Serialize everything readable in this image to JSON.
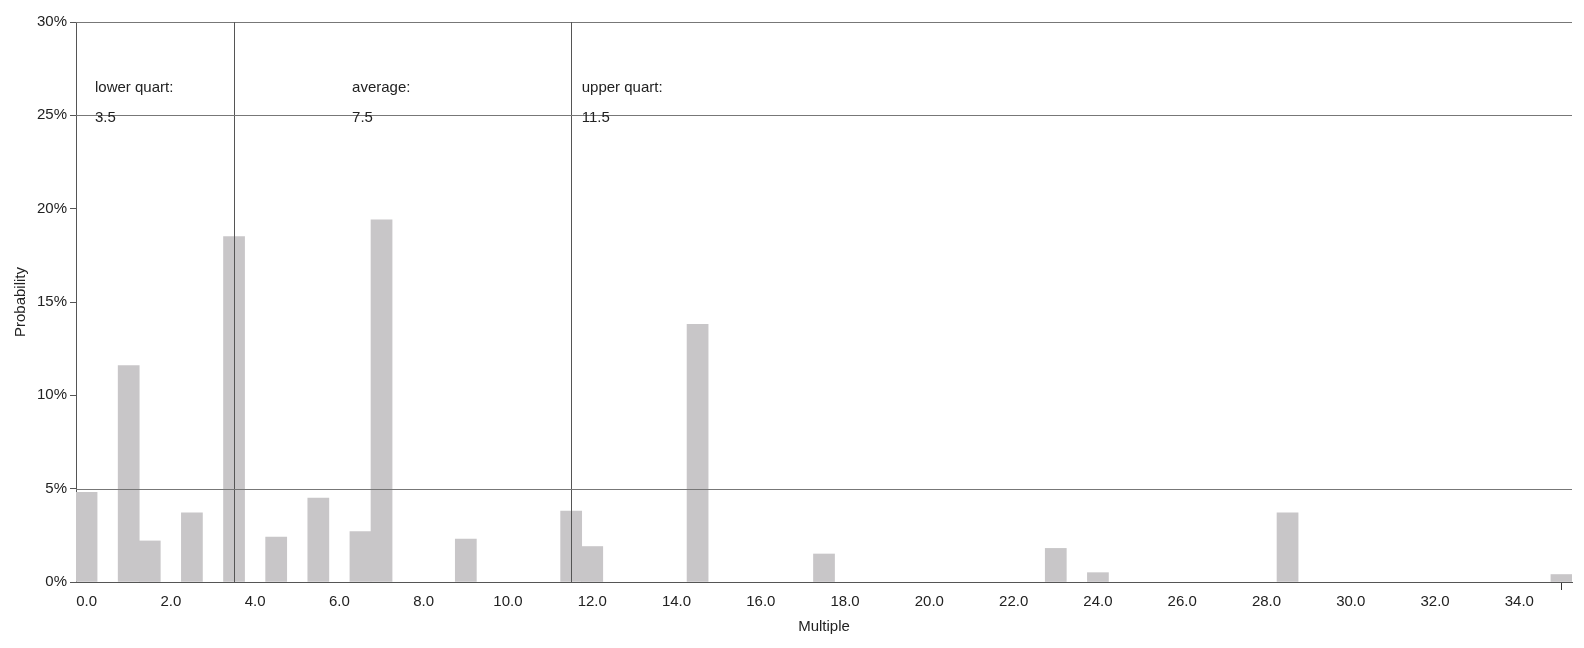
{
  "chart_data": {
    "type": "bar",
    "xlabel": "Multiple",
    "ylabel": "Probability",
    "x": [
      0.0,
      1.0,
      1.5,
      2.5,
      3.5,
      4.5,
      5.5,
      6.5,
      7.0,
      9.0,
      11.5,
      12.0,
      14.5,
      17.5,
      23.0,
      24.0,
      28.5,
      35.0
    ],
    "series": [
      {
        "color": "#c8c6c8",
        "values": [
          4.8,
          11.6,
          2.2,
          3.7,
          18.5,
          2.4,
          4.5,
          2.7,
          19.4,
          2.3,
          3.8,
          1.9,
          13.8,
          1.5,
          1.8,
          0.5,
          3.7,
          0.4
        ]
      }
    ],
    "xlim": [
      -0.25,
      35.25
    ],
    "xticks": [
      {
        "value": 0,
        "label": "0.0"
      },
      {
        "value": 2,
        "label": "2.0"
      },
      {
        "value": 4,
        "label": "4.0"
      },
      {
        "value": 6,
        "label": "6.0"
      },
      {
        "value": 8,
        "label": "8.0"
      },
      {
        "value": 10,
        "label": "10.0"
      },
      {
        "value": 12,
        "label": "12.0"
      },
      {
        "value": 14,
        "label": "14.0"
      },
      {
        "value": 16,
        "label": "16.0"
      },
      {
        "value": 18,
        "label": "18.0"
      },
      {
        "value": 20,
        "label": "20.0"
      },
      {
        "value": 22,
        "label": "22.0"
      },
      {
        "value": 24,
        "label": "24.0"
      },
      {
        "value": 26,
        "label": "26.0"
      },
      {
        "value": 28,
        "label": "28.0"
      },
      {
        "value": 30,
        "label": "30.0"
      },
      {
        "value": 32,
        "label": "32.0"
      },
      {
        "value": 34,
        "label": "34.0"
      }
    ],
    "ylim": [
      0,
      30
    ],
    "yticks": [
      {
        "value": 0,
        "label": "0%"
      },
      {
        "value": 5,
        "label": "5%"
      },
      {
        "value": 10,
        "label": "10%"
      },
      {
        "value": 15,
        "label": "15%"
      },
      {
        "value": 20,
        "label": "20%"
      },
      {
        "value": 25,
        "label": "25%"
      },
      {
        "value": 30,
        "label": "30%"
      }
    ],
    "grid": false,
    "legend": false,
    "ref_lines": [
      {
        "axis": "x",
        "value": 3.5,
        "color": "#555555"
      },
      {
        "axis": "x",
        "value": 11.5,
        "color": "#555555"
      },
      {
        "axis": "y",
        "value": 5,
        "color": "#777777"
      },
      {
        "axis": "y",
        "value": 25,
        "color": "#777777"
      }
    ],
    "annotations": [
      {
        "text": "lower quart:\n3.5",
        "x": 0.2,
        "y": 25
      },
      {
        "text": "average:\n7.5",
        "x": 6.3,
        "y": 25
      },
      {
        "text": "upper quart:\n11.5",
        "x": 11.75,
        "y": 25
      }
    ]
  }
}
